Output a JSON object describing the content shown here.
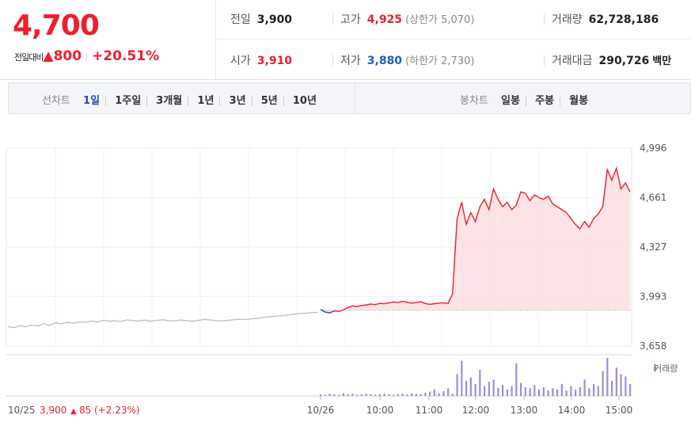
{
  "summary": {
    "price": "4,700",
    "change_label": "전일대비",
    "change_arrow": "▲",
    "change_value": "800",
    "change_rate": "+20.51%"
  },
  "info": {
    "prev_label": "전일",
    "prev": "3,900",
    "high_label": "고가",
    "high": "4,925",
    "upper_limit": "(상한가 5,070)",
    "volume_label": "거래량",
    "volume": "62,728,186",
    "open_label": "시가",
    "open": "3,910",
    "low_label": "저가",
    "low": "3,880",
    "lower_limit": "(하한가 2,730)",
    "amount_label": "거래대금",
    "amount": "290,726",
    "amount_unit": "백만"
  },
  "toolbar": {
    "line_chart_label": "선차트",
    "periods": [
      "1일",
      "1주일",
      "3개월",
      "1년",
      "3년",
      "5년",
      "10년"
    ],
    "active_period": "1일",
    "candle_label": "봉차트",
    "candles": [
      "일봉",
      "주봉",
      "월봉"
    ]
  },
  "legend": {
    "volume": "거래량"
  },
  "bottom": {
    "prev_date": "10/25",
    "prev_price": "3,900",
    "prev_arrow": "▲",
    "prev_change": "85",
    "prev_rate": "(+2.23%)"
  },
  "colors": {
    "up": "#f01e2d",
    "down": "#1f5fc8",
    "volume": "#9b8fd8",
    "fill": "#fde0e3",
    "prev_line": "#bcbcbc"
  },
  "chart_data": {
    "type": "line",
    "ylim": [
      3658,
      4996
    ],
    "yticks": [
      "4,996",
      "4,661",
      "4,327",
      "3,993",
      "3,658"
    ],
    "xticks": [
      "10/26",
      "10:00",
      "11:00",
      "12:00",
      "13:00",
      "14:00",
      "15:00"
    ],
    "baseline": 3900,
    "prev_day_series": [
      3790,
      3782,
      3795,
      3788,
      3800,
      3792,
      3810,
      3798,
      3815,
      3808,
      3820,
      3812,
      3822,
      3818,
      3828,
      3820,
      3832,
      3826,
      3830,
      3824,
      3835,
      3830,
      3828,
      3834,
      3826,
      3832,
      3836,
      3830,
      3828,
      3834,
      3830,
      3826,
      3832,
      3838,
      3834,
      3830,
      3828,
      3832,
      3836,
      3840,
      3838,
      3842,
      3846,
      3852,
      3856,
      3860,
      3862,
      3868,
      3872,
      3878,
      3880,
      3884,
      3886
    ],
    "today_series": [
      3905,
      3888,
      3882,
      3895,
      3892,
      3902,
      3918,
      3930,
      3925,
      3932,
      3936,
      3942,
      3938,
      3946,
      3944,
      3950,
      3956,
      3952,
      3960,
      3954,
      3948,
      3952,
      3958,
      3946,
      3940,
      3944,
      3948,
      3950,
      3946,
      4010,
      4520,
      4630,
      4480,
      4560,
      4500,
      4600,
      4650,
      4580,
      4720,
      4650,
      4600,
      4630,
      4580,
      4610,
      4700,
      4690,
      4640,
      4680,
      4660,
      4650,
      4670,
      4620,
      4600,
      4580,
      4560,
      4520,
      4480,
      4450,
      4500,
      4460,
      4520,
      4550,
      4600,
      4850,
      4780,
      4860,
      4720,
      4760,
      4700
    ],
    "volume_series": [
      3,
      2,
      4,
      3,
      2,
      5,
      3,
      4,
      2,
      3,
      4,
      3,
      2,
      3,
      4,
      3,
      2,
      3,
      4,
      3,
      5,
      4,
      3,
      6,
      8,
      12,
      5,
      9,
      14,
      4,
      40,
      65,
      28,
      34,
      22,
      48,
      18,
      26,
      30,
      15,
      20,
      12,
      18,
      60,
      24,
      16,
      14,
      20,
      12,
      16,
      10,
      14,
      12,
      22,
      10,
      18,
      12,
      16,
      30,
      14,
      22,
      18,
      46,
      70,
      28,
      52,
      40,
      36,
      22
    ]
  }
}
